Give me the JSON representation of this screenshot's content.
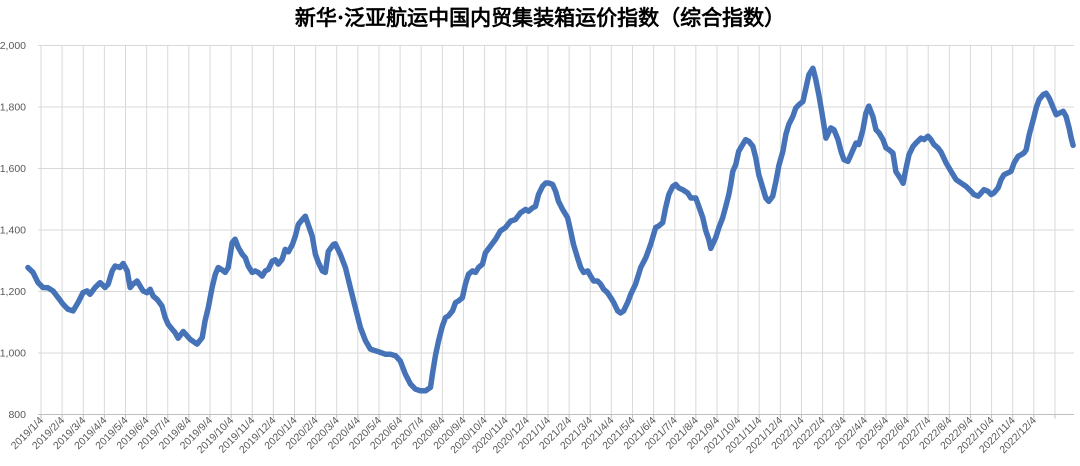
{
  "title": "新华·泛亚航运中国内贸集装箱运价指数（综合指数）",
  "colors": {
    "line": "#4673B8",
    "gridline": "#D9D9D9",
    "axis_line": "#BFBFBF",
    "tick_text": "#595959",
    "title_text": "#000000",
    "background": "#FFFFFF"
  },
  "chart_data": {
    "type": "line",
    "title": "新华·泛亚航运中国内贸集装箱运价指数（综合指数）",
    "xlabel": "",
    "ylabel": "",
    "ylim": [
      800,
      2000
    ],
    "y_tick_step": 200,
    "y_tick_labels": [
      "800",
      "1,000",
      "1,200",
      "1,400",
      "1,600",
      "1,800",
      "2,000"
    ],
    "grid": "both",
    "legend": "none",
    "x_tick_labels": [
      "2019/1/4",
      "2019/2/4",
      "2019/3/4",
      "2019/4/4",
      "2019/5/4",
      "2019/6/4",
      "2019/7/4",
      "2019/8/4",
      "2019/9/4",
      "2019/10/4",
      "2019/11/4",
      "2019/12/4",
      "2020/1/4",
      "2020/2/4",
      "2020/3/4",
      "2020/4/4",
      "2020/5/4",
      "2020/6/4",
      "2020/7/4",
      "2020/8/4",
      "2020/9/4",
      "2020/10/4",
      "2020/11/4",
      "2020/12/4",
      "2021/1/4",
      "2021/2/4",
      "2021/3/4",
      "2021/4/4",
      "2021/5/4",
      "2021/6/4",
      "2021/7/4",
      "2021/8/4",
      "2021/9/4",
      "2021/10/4",
      "2021/11/4",
      "2021/12/4",
      "2022/1/4",
      "2022/2/4",
      "2022/3/4",
      "2022/4/4",
      "2022/5/4",
      "2022/6/4",
      "2022/7/4",
      "2022/8/4",
      "2022/9/4",
      "2022/10/4",
      "2022/11/4",
      "2022/12/4"
    ],
    "xlim_months": [
      -0.66,
      48.95
    ],
    "series": [
      {
        "name": "综合指数",
        "color": "#4673B8",
        "points": [
          [
            -0.62,
            1278
          ],
          [
            -0.38,
            1262
          ],
          [
            -0.14,
            1229
          ],
          [
            0.09,
            1213
          ],
          [
            0.33,
            1212
          ],
          [
            0.57,
            1202
          ],
          [
            0.81,
            1180
          ],
          [
            1.04,
            1159
          ],
          [
            1.28,
            1142
          ],
          [
            1.52,
            1137
          ],
          [
            1.75,
            1164
          ],
          [
            1.99,
            1196
          ],
          [
            2.18,
            1202
          ],
          [
            2.32,
            1191
          ],
          [
            2.56,
            1213
          ],
          [
            2.8,
            1229
          ],
          [
            3.03,
            1213
          ],
          [
            3.18,
            1224
          ],
          [
            3.37,
            1267
          ],
          [
            3.51,
            1283
          ],
          [
            3.74,
            1278
          ],
          [
            3.89,
            1291
          ],
          [
            4.08,
            1267
          ],
          [
            4.22,
            1213
          ],
          [
            4.36,
            1224
          ],
          [
            4.55,
            1234
          ],
          [
            4.69,
            1218
          ],
          [
            4.83,
            1202
          ],
          [
            5.02,
            1196
          ],
          [
            5.17,
            1207
          ],
          [
            5.31,
            1185
          ],
          [
            5.5,
            1174
          ],
          [
            5.73,
            1153
          ],
          [
            5.88,
            1115
          ],
          [
            6.02,
            1093
          ],
          [
            6.21,
            1077
          ],
          [
            6.35,
            1066
          ],
          [
            6.49,
            1048
          ],
          [
            6.73,
            1070
          ],
          [
            7.06,
            1045
          ],
          [
            7.39,
            1029
          ],
          [
            7.63,
            1050
          ],
          [
            7.77,
            1105
          ],
          [
            7.92,
            1148
          ],
          [
            8.1,
            1213
          ],
          [
            8.25,
            1256
          ],
          [
            8.39,
            1278
          ],
          [
            8.58,
            1270
          ],
          [
            8.72,
            1262
          ],
          [
            8.86,
            1278
          ],
          [
            9.05,
            1359
          ],
          [
            9.19,
            1370
          ],
          [
            9.34,
            1343
          ],
          [
            9.53,
            1321
          ],
          [
            9.67,
            1310
          ],
          [
            9.81,
            1283
          ],
          [
            10.0,
            1262
          ],
          [
            10.14,
            1267
          ],
          [
            10.28,
            1262
          ],
          [
            10.47,
            1250
          ],
          [
            10.62,
            1267
          ],
          [
            10.76,
            1272
          ],
          [
            10.95,
            1299
          ],
          [
            11.09,
            1303
          ],
          [
            11.23,
            1289
          ],
          [
            11.42,
            1305
          ],
          [
            11.56,
            1337
          ],
          [
            11.71,
            1329
          ],
          [
            11.9,
            1353
          ],
          [
            12.04,
            1380
          ],
          [
            12.18,
            1418
          ],
          [
            12.37,
            1434
          ],
          [
            12.51,
            1445
          ],
          [
            12.65,
            1418
          ],
          [
            12.84,
            1380
          ],
          [
            12.99,
            1321
          ],
          [
            13.13,
            1294
          ],
          [
            13.32,
            1267
          ],
          [
            13.46,
            1262
          ],
          [
            13.6,
            1330
          ],
          [
            13.84,
            1353
          ],
          [
            13.93,
            1355
          ],
          [
            14.17,
            1321
          ],
          [
            14.41,
            1278
          ],
          [
            14.64,
            1213
          ],
          [
            14.88,
            1148
          ],
          [
            15.12,
            1083
          ],
          [
            15.36,
            1040
          ],
          [
            15.59,
            1013
          ],
          [
            15.83,
            1007
          ],
          [
            16.07,
            1002
          ],
          [
            16.3,
            996
          ],
          [
            16.54,
            996
          ],
          [
            16.78,
            991
          ],
          [
            17.01,
            974
          ],
          [
            17.25,
            931
          ],
          [
            17.49,
            899
          ],
          [
            17.72,
            883
          ],
          [
            17.96,
            877
          ],
          [
            18.2,
            877
          ],
          [
            18.44,
            888
          ],
          [
            18.53,
            931
          ],
          [
            18.67,
            991
          ],
          [
            18.82,
            1040
          ],
          [
            19.0,
            1088
          ],
          [
            19.15,
            1115
          ],
          [
            19.29,
            1121
          ],
          [
            19.48,
            1137
          ],
          [
            19.62,
            1164
          ],
          [
            19.76,
            1169
          ],
          [
            19.95,
            1180
          ],
          [
            20.09,
            1224
          ],
          [
            20.24,
            1256
          ],
          [
            20.43,
            1267
          ],
          [
            20.57,
            1262
          ],
          [
            20.71,
            1278
          ],
          [
            20.9,
            1289
          ],
          [
            21.04,
            1326
          ],
          [
            21.28,
            1348
          ],
          [
            21.52,
            1370
          ],
          [
            21.75,
            1397
          ],
          [
            21.99,
            1408
          ],
          [
            22.23,
            1429
          ],
          [
            22.46,
            1434
          ],
          [
            22.7,
            1456
          ],
          [
            22.94,
            1467
          ],
          [
            23.08,
            1461
          ],
          [
            23.27,
            1472
          ],
          [
            23.41,
            1477
          ],
          [
            23.55,
            1515
          ],
          [
            23.74,
            1542
          ],
          [
            23.89,
            1553
          ],
          [
            24.03,
            1553
          ],
          [
            24.22,
            1548
          ],
          [
            24.36,
            1526
          ],
          [
            24.5,
            1493
          ],
          [
            24.69,
            1467
          ],
          [
            24.93,
            1440
          ],
          [
            25.07,
            1397
          ],
          [
            25.21,
            1353
          ],
          [
            25.4,
            1310
          ],
          [
            25.55,
            1278
          ],
          [
            25.69,
            1262
          ],
          [
            25.88,
            1267
          ],
          [
            26.02,
            1250
          ],
          [
            26.16,
            1234
          ],
          [
            26.35,
            1234
          ],
          [
            26.49,
            1224
          ],
          [
            26.64,
            1207
          ],
          [
            26.82,
            1196
          ],
          [
            26.97,
            1180
          ],
          [
            27.11,
            1164
          ],
          [
            27.3,
            1137
          ],
          [
            27.44,
            1130
          ],
          [
            27.58,
            1137
          ],
          [
            27.77,
            1164
          ],
          [
            27.91,
            1190
          ],
          [
            28.15,
            1224
          ],
          [
            28.39,
            1278
          ],
          [
            28.63,
            1310
          ],
          [
            28.86,
            1353
          ],
          [
            29.1,
            1408
          ],
          [
            29.24,
            1413
          ],
          [
            29.43,
            1424
          ],
          [
            29.57,
            1472
          ],
          [
            29.72,
            1515
          ],
          [
            29.91,
            1542
          ],
          [
            30.05,
            1548
          ],
          [
            30.19,
            1537
          ],
          [
            30.38,
            1531
          ],
          [
            30.62,
            1520
          ],
          [
            30.76,
            1504
          ],
          [
            31.0,
            1504
          ],
          [
            31.14,
            1477
          ],
          [
            31.33,
            1440
          ],
          [
            31.47,
            1397
          ],
          [
            31.61,
            1370
          ],
          [
            31.71,
            1340
          ],
          [
            31.94,
            1375
          ],
          [
            32.09,
            1408
          ],
          [
            32.27,
            1440
          ],
          [
            32.42,
            1477
          ],
          [
            32.56,
            1515
          ],
          [
            32.65,
            1548
          ],
          [
            32.75,
            1591
          ],
          [
            32.89,
            1613
          ],
          [
            33.03,
            1656
          ],
          [
            33.22,
            1678
          ],
          [
            33.36,
            1694
          ],
          [
            33.51,
            1688
          ],
          [
            33.7,
            1672
          ],
          [
            33.84,
            1634
          ],
          [
            33.98,
            1580
          ],
          [
            34.17,
            1537
          ],
          [
            34.31,
            1504
          ],
          [
            34.45,
            1493
          ],
          [
            34.64,
            1510
          ],
          [
            34.79,
            1558
          ],
          [
            34.93,
            1610
          ],
          [
            35.12,
            1656
          ],
          [
            35.26,
            1710
          ],
          [
            35.4,
            1743
          ],
          [
            35.59,
            1769
          ],
          [
            35.73,
            1797
          ],
          [
            35.88,
            1807
          ],
          [
            36.07,
            1818
          ],
          [
            36.21,
            1861
          ],
          [
            36.35,
            1905
          ],
          [
            36.54,
            1926
          ],
          [
            36.68,
            1889
          ],
          [
            36.82,
            1840
          ],
          [
            36.97,
            1780
          ],
          [
            37.16,
            1699
          ],
          [
            37.39,
            1732
          ],
          [
            37.54,
            1726
          ],
          [
            37.73,
            1694
          ],
          [
            37.87,
            1656
          ],
          [
            38.01,
            1629
          ],
          [
            38.2,
            1623
          ],
          [
            38.34,
            1645
          ],
          [
            38.58,
            1683
          ],
          [
            38.72,
            1678
          ],
          [
            38.91,
            1726
          ],
          [
            39.05,
            1780
          ],
          [
            39.19,
            1803
          ],
          [
            39.38,
            1769
          ],
          [
            39.53,
            1726
          ],
          [
            39.67,
            1716
          ],
          [
            39.86,
            1694
          ],
          [
            40.0,
            1667
          ],
          [
            40.14,
            1661
          ],
          [
            40.33,
            1650
          ],
          [
            40.47,
            1590
          ],
          [
            40.71,
            1565
          ],
          [
            40.81,
            1552
          ],
          [
            40.95,
            1600
          ],
          [
            41.09,
            1645
          ],
          [
            41.28,
            1672
          ],
          [
            41.42,
            1683
          ],
          [
            41.66,
            1699
          ],
          [
            41.8,
            1694
          ],
          [
            41.99,
            1705
          ],
          [
            42.13,
            1694
          ],
          [
            42.27,
            1678
          ],
          [
            42.46,
            1667
          ],
          [
            42.61,
            1653
          ],
          [
            42.84,
            1619
          ],
          [
            43.08,
            1591
          ],
          [
            43.32,
            1564
          ],
          [
            43.55,
            1553
          ],
          [
            43.79,
            1542
          ],
          [
            44.03,
            1526
          ],
          [
            44.17,
            1515
          ],
          [
            44.36,
            1510
          ],
          [
            44.5,
            1520
          ],
          [
            44.64,
            1531
          ],
          [
            44.83,
            1526
          ],
          [
            44.98,
            1515
          ],
          [
            45.12,
            1521
          ],
          [
            45.31,
            1537
          ],
          [
            45.45,
            1564
          ],
          [
            45.59,
            1580
          ],
          [
            45.78,
            1586
          ],
          [
            45.92,
            1591
          ],
          [
            46.07,
            1619
          ],
          [
            46.26,
            1640
          ],
          [
            46.4,
            1645
          ],
          [
            46.54,
            1651
          ],
          [
            46.64,
            1661
          ],
          [
            46.78,
            1710
          ],
          [
            46.97,
            1758
          ],
          [
            47.11,
            1797
          ],
          [
            47.25,
            1824
          ],
          [
            47.44,
            1840
          ],
          [
            47.58,
            1845
          ],
          [
            47.73,
            1829
          ],
          [
            47.92,
            1797
          ],
          [
            48.06,
            1775
          ],
          [
            48.2,
            1780
          ],
          [
            48.39,
            1786
          ],
          [
            48.53,
            1769
          ],
          [
            48.67,
            1732
          ],
          [
            48.77,
            1699
          ],
          [
            48.86,
            1675
          ]
        ]
      }
    ]
  }
}
